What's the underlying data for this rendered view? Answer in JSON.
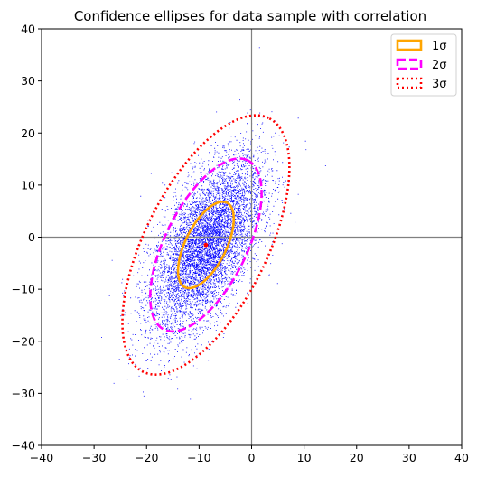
{
  "chart_data": {
    "type": "scatter",
    "title": "Confidence ellipses for data sample with correlation",
    "xlabel": "",
    "ylabel": "",
    "xlim": [
      -40,
      40
    ],
    "ylim": [
      -40,
      40
    ],
    "xticks": [
      "−40",
      "−30",
      "−20",
      "−10",
      "0",
      "10",
      "20",
      "30",
      "40"
    ],
    "yticks": [
      "−40",
      "−30",
      "−20",
      "−10",
      "0",
      "10",
      "20",
      "30",
      "40"
    ],
    "xtick_values": [
      -40,
      -30,
      -20,
      -10,
      0,
      10,
      20,
      30,
      40
    ],
    "ytick_values": [
      -40,
      -30,
      -20,
      -10,
      0,
      10,
      20,
      30,
      40
    ],
    "grid": false,
    "reference_lines": {
      "x": 0,
      "y": 0,
      "color": "#808080"
    },
    "scatter": {
      "color": "#0000ff",
      "approx_count": 9000,
      "center": [
        -8.7,
        -1.5
      ],
      "std_x": 5.3,
      "std_y": 8.3,
      "correlation": 0.6
    },
    "ellipses": [
      {
        "name": "1σ",
        "n_std": 1,
        "color": "#ffa500",
        "style": "solid",
        "center": [
          -8.7,
          -1.5
        ],
        "cov": [
          [
            28.1,
            26.4
          ],
          [
            26.4,
            68.9
          ]
        ]
      },
      {
        "name": "2σ",
        "n_std": 2,
        "color": "#ff00ff",
        "style": "dashed",
        "center": [
          -8.7,
          -1.5
        ],
        "cov": [
          [
            28.1,
            26.4
          ],
          [
            26.4,
            68.9
          ]
        ]
      },
      {
        "name": "3σ",
        "n_std": 3,
        "color": "#ff0000",
        "style": "dotted",
        "center": [
          -8.7,
          -1.5
        ],
        "cov": [
          [
            28.1,
            26.4
          ],
          [
            26.4,
            68.9
          ]
        ]
      }
    ],
    "center_marker": {
      "x": -8.7,
      "y": -1.5,
      "color": "#ff0000"
    },
    "legend": {
      "position": "top-right",
      "entries": [
        "1σ",
        "2σ",
        "3σ"
      ]
    }
  }
}
